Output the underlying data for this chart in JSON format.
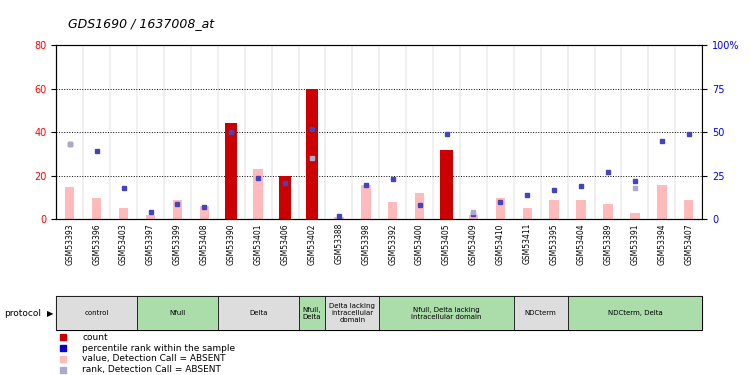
{
  "title": "GDS1690 / 1637008_at",
  "samples": [
    "GSM53393",
    "GSM53396",
    "GSM53403",
    "GSM53397",
    "GSM53399",
    "GSM53408",
    "GSM53390",
    "GSM53401",
    "GSM53406",
    "GSM53402",
    "GSM53388",
    "GSM53398",
    "GSM53392",
    "GSM53400",
    "GSM53405",
    "GSM53409",
    "GSM53410",
    "GSM53411",
    "GSM53395",
    "GSM53404",
    "GSM53389",
    "GSM53391",
    "GSM53394",
    "GSM53407"
  ],
  "count_values": [
    0,
    0,
    0,
    0,
    0,
    0,
    44,
    0,
    20,
    60,
    0,
    0,
    0,
    0,
    32,
    0,
    0,
    0,
    0,
    0,
    0,
    0,
    0,
    0
  ],
  "rank_values": [
    43,
    39,
    18,
    4,
    9,
    7,
    50,
    24,
    21,
    52,
    2,
    20,
    23,
    8,
    49,
    3,
    10,
    14,
    17,
    19,
    27,
    22,
    45,
    49
  ],
  "value_absent": [
    15,
    10,
    5,
    2,
    9,
    6,
    0,
    23,
    0,
    0,
    1,
    16,
    8,
    12,
    0,
    2,
    10,
    5,
    9,
    9,
    7,
    3,
    16,
    9
  ],
  "rank_absent": [
    43,
    0,
    0,
    0,
    0,
    0,
    0,
    0,
    0,
    35,
    0,
    0,
    0,
    0,
    0,
    4,
    0,
    0,
    0,
    0,
    0,
    18,
    0,
    0
  ],
  "count_color": "#cc0000",
  "rank_color": "#4444bb",
  "value_absent_color": "#ffbbbb",
  "rank_absent_color": "#aaaacc",
  "ylim_left": [
    0,
    80
  ],
  "ylim_right": [
    0,
    100
  ],
  "yticks_left": [
    0,
    20,
    40,
    60,
    80
  ],
  "yticks_right": [
    0,
    25,
    50,
    75,
    100
  ],
  "ytick_labels_right": [
    "0",
    "25",
    "50",
    "75",
    "100%"
  ],
  "groups": [
    {
      "label": "control",
      "start": 0,
      "end": 3,
      "color": "#dddddd"
    },
    {
      "label": "Nfull",
      "start": 3,
      "end": 6,
      "color": "#aaddaa"
    },
    {
      "label": "Delta",
      "start": 6,
      "end": 9,
      "color": "#dddddd"
    },
    {
      "label": "Nfull,\nDelta",
      "start": 9,
      "end": 10,
      "color": "#aaddaa"
    },
    {
      "label": "Delta lacking\nintracellular\ndomain",
      "start": 10,
      "end": 12,
      "color": "#dddddd"
    },
    {
      "label": "Nfull, Delta lacking\nintracellular domain",
      "start": 12,
      "end": 17,
      "color": "#aaddaa"
    },
    {
      "label": "NDCterm",
      "start": 17,
      "end": 19,
      "color": "#dddddd"
    },
    {
      "label": "NDCterm, Delta",
      "start": 19,
      "end": 24,
      "color": "#aaddaa"
    }
  ],
  "legend_items": [
    {
      "label": "count",
      "color": "#cc0000"
    },
    {
      "label": "percentile rank within the sample",
      "color": "#0000cc"
    },
    {
      "label": "value, Detection Call = ABSENT",
      "color": "#ffbbbb"
    },
    {
      "label": "rank, Detection Call = ABSENT",
      "color": "#aaaacc"
    }
  ],
  "protocol_label": "protocol"
}
